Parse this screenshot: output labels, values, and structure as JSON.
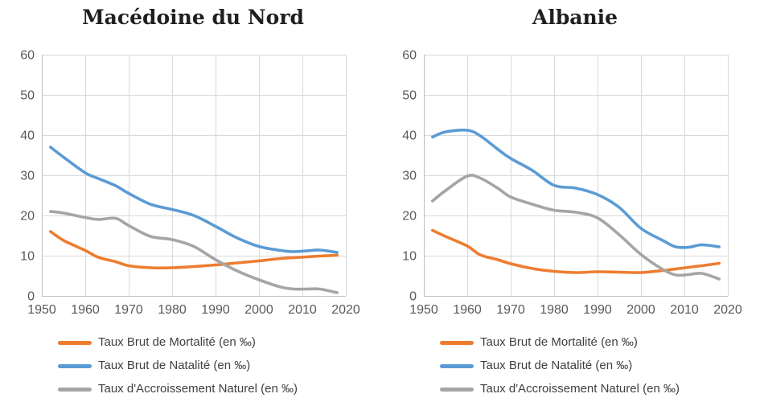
{
  "chart_data": [
    {
      "type": "line",
      "title": "Macédoine du Nord",
      "xlim": [
        1950,
        2020
      ],
      "ylim": [
        0,
        60
      ],
      "x_ticks": [
        1950,
        1960,
        1970,
        1980,
        1990,
        2000,
        2010,
        2020
      ],
      "y_ticks": [
        0,
        10,
        20,
        30,
        40,
        50,
        60
      ],
      "grid": true,
      "legend_position": "bottom-left",
      "x": [
        1952,
        1955,
        1960,
        1963,
        1967,
        1970,
        1975,
        1980,
        1985,
        1990,
        1995,
        2000,
        2005,
        2008,
        2011,
        2014,
        2018
      ],
      "series": [
        {
          "id": "mortalite",
          "name": "Taux Brut de Mortalité (en ‰)",
          "color": "#ED7D31",
          "values": [
            16,
            13.8,
            11.3,
            9.6,
            8.5,
            7.5,
            7.0,
            7.0,
            7.3,
            7.7,
            8.2,
            8.7,
            9.3,
            9.5,
            9.7,
            9.9,
            10.1
          ]
        },
        {
          "id": "natalite",
          "name": "Taux Brut de Natalité (en ‰)",
          "color": "#5B9BD5",
          "values": [
            37,
            34.5,
            30.6,
            29.2,
            27.4,
            25.5,
            22.8,
            21.5,
            20.0,
            17.3,
            14.4,
            12.3,
            11.3,
            11.0,
            11.2,
            11.4,
            10.8
          ]
        },
        {
          "id": "accroissement",
          "name": "Taux d'Accroissement Naturel (en ‰)",
          "color": "#A5A5A5",
          "values": [
            21,
            20.6,
            19.5,
            19.0,
            19.3,
            17.5,
            14.8,
            14.0,
            12.3,
            9.0,
            6.2,
            4.0,
            2.2,
            1.7,
            1.7,
            1.7,
            0.8
          ]
        }
      ]
    },
    {
      "type": "line",
      "title": "Albanie",
      "xlim": [
        1950,
        2020
      ],
      "ylim": [
        0,
        60
      ],
      "x_ticks": [
        1950,
        1960,
        1970,
        1980,
        1990,
        2000,
        2010,
        2020
      ],
      "y_ticks": [
        0,
        10,
        20,
        30,
        40,
        50,
        60
      ],
      "grid": true,
      "legend_position": "bottom-left",
      "x": [
        1952,
        1955,
        1960,
        1963,
        1967,
        1970,
        1975,
        1980,
        1985,
        1990,
        1995,
        2000,
        2005,
        2008,
        2011,
        2014,
        2018
      ],
      "series": [
        {
          "id": "mortalite",
          "name": "Taux Brut de Mortalité (en ‰)",
          "color": "#ED7D31",
          "values": [
            16.3,
            14.8,
            12.4,
            10.2,
            9.0,
            8.0,
            6.8,
            6.1,
            5.8,
            6.0,
            5.9,
            5.8,
            6.3,
            6.7,
            7.1,
            7.5,
            8.1
          ]
        },
        {
          "id": "natalite",
          "name": "Taux Brut de Natalité (en ‰)",
          "color": "#5B9BD5",
          "values": [
            39.5,
            40.8,
            41.2,
            39.8,
            36.5,
            34.2,
            31.2,
            27.5,
            26.8,
            25.2,
            22.0,
            16.8,
            13.8,
            12.2,
            12.1,
            12.7,
            12.2
          ]
        },
        {
          "id": "accroissement",
          "name": "Taux d'Accroissement Naturel (en ‰)",
          "color": "#A5A5A5",
          "values": [
            23.6,
            26.2,
            29.8,
            29.3,
            26.8,
            24.6,
            22.8,
            21.3,
            20.8,
            19.4,
            15.2,
            10.3,
            6.6,
            5.2,
            5.3,
            5.6,
            4.2
          ]
        }
      ]
    }
  ],
  "style": {
    "grid_color": "#D9D9D9",
    "axis_color": "#BFBFBF",
    "tick_label_color": "#595959",
    "legend_text_color": "#404040"
  }
}
